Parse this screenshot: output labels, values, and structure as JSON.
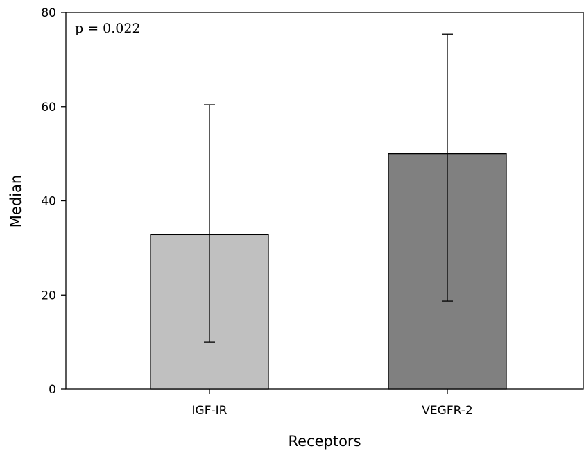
{
  "chart_data": {
    "type": "bar",
    "title": "",
    "xlabel": "Receptors",
    "ylabel": "Median",
    "categories": [
      "IGF-IR",
      "VEGFR-2"
    ],
    "values": [
      32.8,
      50.0
    ],
    "error_low": [
      10.0,
      18.7
    ],
    "error_high": [
      60.4,
      75.4
    ],
    "bar_colors": [
      "#c0c0c0",
      "#808080"
    ],
    "ylim": [
      0,
      80
    ],
    "yticks": [
      0,
      20,
      40,
      60,
      80
    ],
    "ytick_labels": [
      "0",
      "20",
      "40",
      "60",
      "80"
    ],
    "annotation": "p = 0.022",
    "grid": false,
    "legend": "none"
  }
}
